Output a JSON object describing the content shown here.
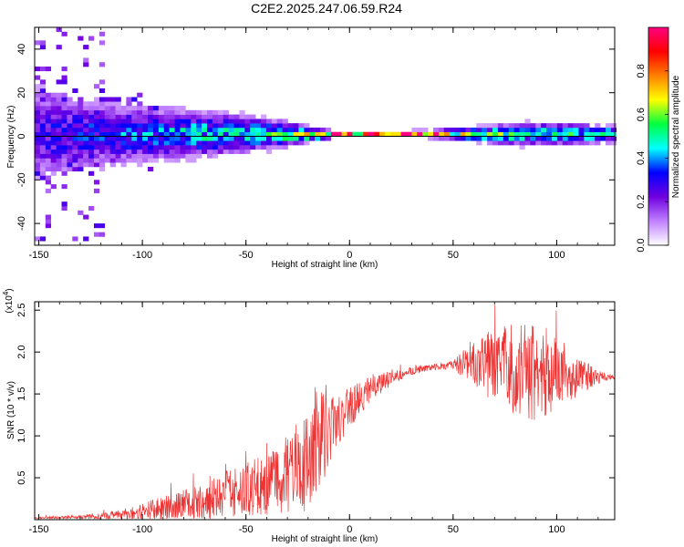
{
  "title": "C2E2.2025.247.06.59.R24",
  "chart_data": [
    {
      "type": "heatmap",
      "name": "spectrogram",
      "xlabel": "Height of straight line (km)",
      "ylabel": "Frequency (Hz)",
      "xlim": [
        -152,
        128
      ],
      "ylim": [
        -50,
        50
      ],
      "xticks": [
        -150,
        -100,
        -50,
        0,
        50,
        100
      ],
      "xtick_labels": [
        "-150",
        "-100",
        "-50",
        "0",
        "50",
        "100"
      ],
      "yticks": [
        -40,
        -20,
        0,
        20,
        40
      ],
      "ytick_labels": [
        "-40",
        "-20",
        "0",
        "20",
        "40"
      ],
      "colorbar": {
        "label": "Normalized spectral amplitude",
        "range": [
          0,
          1
        ],
        "ticks": [
          0.0,
          0.2,
          0.4,
          0.6,
          0.8
        ],
        "tick_labels": [
          "0.0",
          "0.2",
          "0.4",
          "0.6",
          "0.8"
        ],
        "colors": [
          "#ffffff",
          "#c080ff",
          "#7000e0",
          "#0000ff",
          "#00ffff",
          "#00ff40",
          "#ffff00",
          "#ff8000",
          "#ff0000",
          "#ff0080"
        ]
      },
      "band_profile": {
        "x": [
          -152,
          -130,
          -110,
          -90,
          -70,
          -50,
          -40,
          -30,
          -20,
          -10,
          0,
          20,
          40,
          60,
          80,
          100,
          128
        ],
        "half_width_hz": [
          14,
          10,
          8,
          7,
          6,
          5,
          4,
          3,
          2,
          1,
          0.8,
          0.8,
          1,
          2,
          3,
          3,
          2
        ],
        "peak_amplitude": [
          0.3,
          0.35,
          0.4,
          0.45,
          0.5,
          0.5,
          0.55,
          0.6,
          0.7,
          0.9,
          0.95,
          0.95,
          0.9,
          0.6,
          0.55,
          0.5,
          0.6
        ]
      }
    },
    {
      "type": "line",
      "name": "snr",
      "xlabel": "Height of straight line (km)",
      "ylabel": "SNR (10 * v/v)",
      "scale_note": "(x10",
      "scale_exponent": "4",
      "xlim": [
        -152,
        128
      ],
      "ylim": [
        0,
        2.6
      ],
      "xticks": [
        -150,
        -100,
        -50,
        0,
        50,
        100
      ],
      "xtick_labels": [
        "-150",
        "-100",
        "-50",
        "0",
        "50",
        "100"
      ],
      "yticks": [
        0.5,
        1.0,
        1.5,
        2.0,
        2.5
      ],
      "ytick_labels": [
        "0.5",
        "1.0",
        "1.5",
        "2.0",
        "2.5"
      ],
      "color": "#ee3333",
      "envelope": {
        "x": [
          -152,
          -130,
          -110,
          -100,
          -90,
          -80,
          -70,
          -60,
          -50,
          -40,
          -30,
          -20,
          -15,
          -10,
          -5,
          0,
          10,
          20,
          30,
          40,
          50,
          60,
          70,
          80,
          90,
          100,
          110,
          120,
          128
        ],
        "base": [
          0.02,
          0.03,
          0.06,
          0.1,
          0.14,
          0.18,
          0.22,
          0.28,
          0.35,
          0.45,
          0.55,
          0.7,
          0.9,
          1.1,
          1.2,
          1.35,
          1.55,
          1.7,
          1.78,
          1.82,
          1.85,
          1.87,
          1.85,
          1.8,
          1.78,
          1.75,
          1.72,
          1.7,
          1.7
        ],
        "noise": [
          0.01,
          0.02,
          0.06,
          0.1,
          0.14,
          0.18,
          0.22,
          0.28,
          0.32,
          0.4,
          0.48,
          0.6,
          0.8,
          0.5,
          0.3,
          0.25,
          0.15,
          0.1,
          0.05,
          0.04,
          0.05,
          0.3,
          0.45,
          0.55,
          0.6,
          0.45,
          0.25,
          0.08,
          0.02
        ]
      }
    }
  ]
}
